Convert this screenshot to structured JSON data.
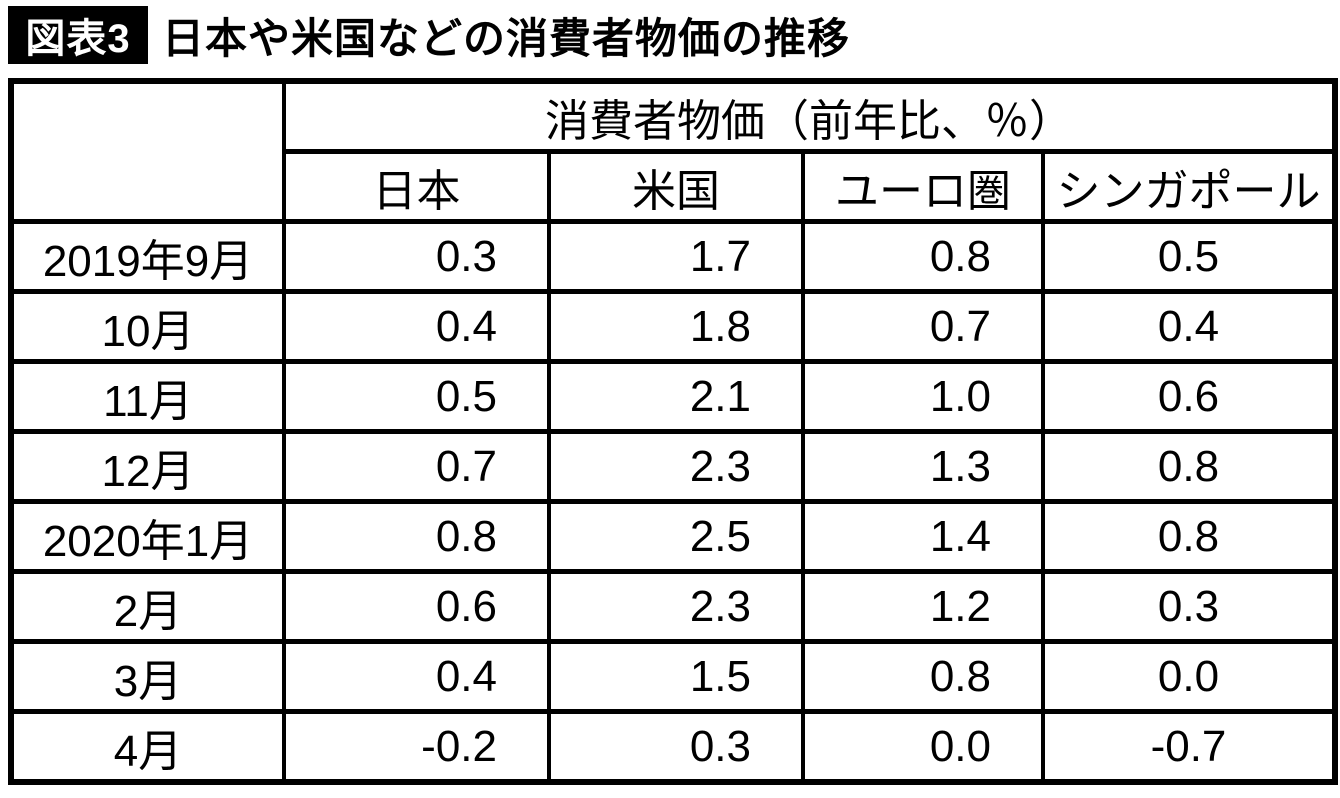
{
  "title": {
    "badge": "図表3",
    "text": "日本や米国などの消費者物価の推移"
  },
  "table": {
    "group_header": "消費者物価（前年比、％）",
    "columns": [
      "日本",
      "米国",
      "ユーロ圏",
      "シンガポール"
    ],
    "row_labels": [
      "2019年9月",
      "10月",
      "11月",
      "12月",
      "2020年1月",
      "2月",
      "3月",
      "4月"
    ]
  },
  "chart_data": {
    "type": "table",
    "title": "日本や米国などの消費者物価の推移",
    "figure_label": "図表3",
    "unit": "前年比、％",
    "group_header": "消費者物価（前年比、％）",
    "categories": [
      "2019年9月",
      "10月",
      "11月",
      "12月",
      "2020年1月",
      "2月",
      "3月",
      "4月"
    ],
    "series": [
      {
        "name": "日本",
        "values": [
          0.3,
          0.4,
          0.5,
          0.7,
          0.8,
          0.6,
          0.4,
          -0.2
        ]
      },
      {
        "name": "米国",
        "values": [
          1.7,
          1.8,
          2.1,
          2.3,
          2.5,
          2.3,
          1.5,
          0.3
        ]
      },
      {
        "name": "ユーロ圏",
        "values": [
          0.8,
          0.7,
          1.0,
          1.3,
          1.4,
          1.2,
          0.8,
          0.0
        ]
      },
      {
        "name": "シンガポール",
        "values": [
          0.5,
          0.4,
          0.6,
          0.8,
          0.8,
          0.3,
          0.0,
          -0.7
        ]
      }
    ],
    "value_decimals": 1
  },
  "colors": {
    "text": "#000000",
    "border": "#000000",
    "background": "#ffffff",
    "badge_bg": "#000000",
    "badge_text": "#ffffff"
  }
}
